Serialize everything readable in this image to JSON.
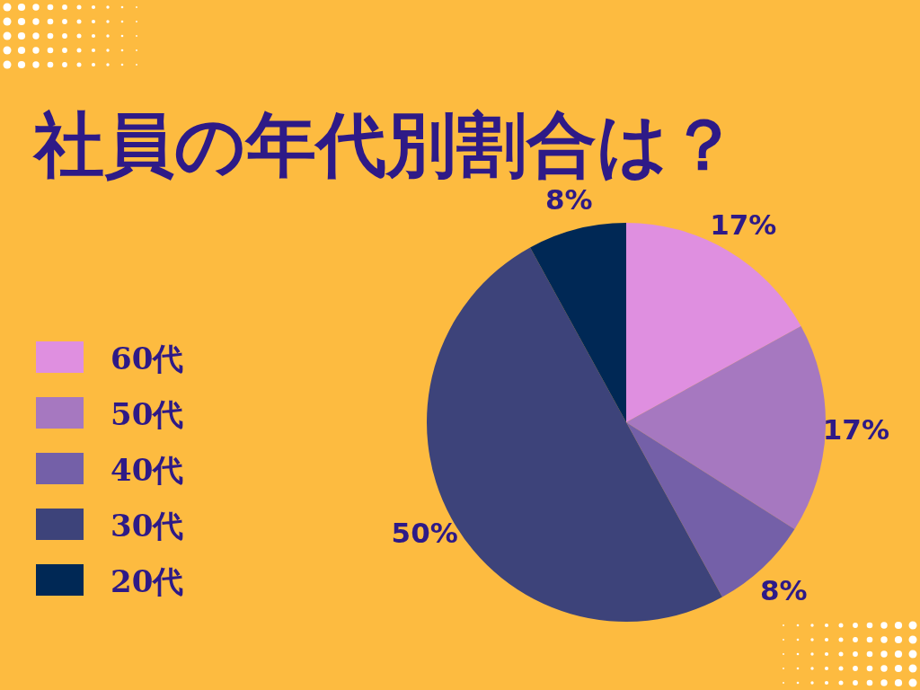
{
  "chart_data": {
    "type": "pie",
    "title": "社員の年代別割合は？",
    "categories": [
      "60代",
      "50代",
      "40代",
      "30代",
      "20代"
    ],
    "values": [
      17,
      17,
      8,
      50,
      8
    ],
    "colors": [
      "#df8fe0",
      "#a678c0",
      "#7460a8",
      "#3d437a",
      "#002855"
    ],
    "value_labels": [
      "17%",
      "17%",
      "8%",
      "50%",
      "8%"
    ],
    "legend": "left"
  }
}
